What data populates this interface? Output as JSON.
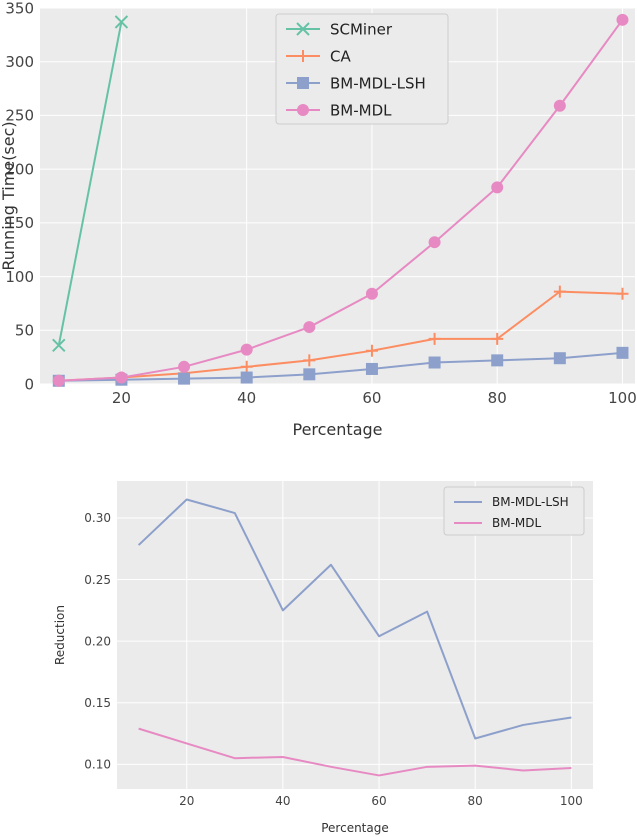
{
  "chart_data": [
    {
      "type": "line",
      "title": "",
      "xlabel": "Percentage",
      "ylabel": "Running Time(sec)",
      "xlim": [
        7,
        102
      ],
      "ylim": [
        0,
        350
      ],
      "xticks": [
        20,
        40,
        60,
        80,
        100
      ],
      "yticks": [
        0,
        50,
        100,
        150,
        200,
        250,
        300,
        350
      ],
      "grid": true,
      "legend_position": "top-center",
      "series": [
        {
          "name": "SCMiner",
          "color": "#66c2a5",
          "marker": "x",
          "x": [
            10,
            20
          ],
          "values": [
            36,
            337
          ]
        },
        {
          "name": "CA",
          "color": "#fc8d62",
          "marker": "+",
          "x": [
            10,
            20,
            30,
            40,
            50,
            60,
            70,
            80,
            90,
            100
          ],
          "values": [
            3,
            6,
            10,
            16,
            22,
            31,
            42,
            42,
            86,
            84
          ]
        },
        {
          "name": "BM-MDL-LSH",
          "color": "#8da0cb",
          "marker": "square",
          "x": [
            10,
            20,
            30,
            40,
            50,
            60,
            70,
            80,
            90,
            100
          ],
          "values": [
            3,
            4,
            5,
            6,
            9,
            14,
            20,
            22,
            24,
            29
          ]
        },
        {
          "name": "BM-MDL",
          "color": "#e78ac3",
          "marker": "circle",
          "x": [
            10,
            20,
            30,
            40,
            50,
            60,
            70,
            80,
            90,
            100
          ],
          "values": [
            3,
            6,
            16,
            32,
            53,
            84,
            132,
            183,
            259,
            339
          ]
        }
      ]
    },
    {
      "type": "line",
      "title": "",
      "xlabel": "Percentage",
      "ylabel": "Reduction",
      "xlim": [
        5.5,
        104.5
      ],
      "ylim": [
        0.08,
        0.33
      ],
      "xticks": [
        20,
        40,
        60,
        80,
        100
      ],
      "yticks": [
        0.1,
        0.15,
        0.2,
        0.25,
        0.3
      ],
      "ytick_labels": [
        "0.10",
        "0.15",
        "0.20",
        "0.25",
        "0.30"
      ],
      "grid": true,
      "legend_position": "top-right",
      "series": [
        {
          "name": "BM-MDL-LSH",
          "color": "#8da0cb",
          "marker": "none",
          "x": [
            10,
            20,
            30,
            40,
            50,
            60,
            70,
            80,
            90,
            100
          ],
          "values": [
            0.278,
            0.315,
            0.304,
            0.225,
            0.262,
            0.204,
            0.224,
            0.121,
            0.132,
            0.138
          ]
        },
        {
          "name": "BM-MDL",
          "color": "#e78ac3",
          "marker": "none",
          "x": [
            10,
            20,
            30,
            40,
            50,
            60,
            70,
            80,
            90,
            100
          ],
          "values": [
            0.129,
            0.117,
            0.105,
            0.106,
            0.098,
            0.091,
            0.098,
            0.099,
            0.095,
            0.097
          ]
        }
      ]
    }
  ]
}
